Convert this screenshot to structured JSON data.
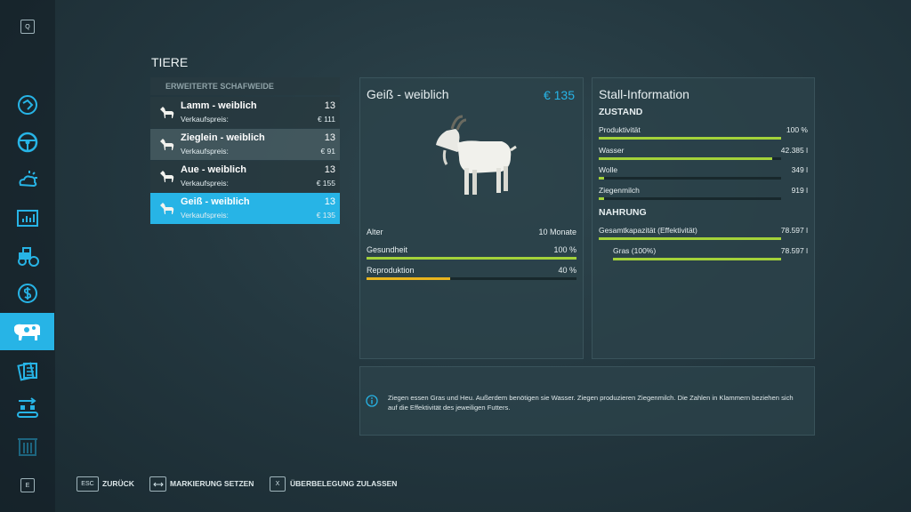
{
  "sidebar": {
    "top_key": "Q",
    "bottom_key": "E"
  },
  "page_title": "TIERE",
  "animal_list": {
    "header": "ERWEITERTE SCHAFWEIDE",
    "rows": [
      {
        "name": "Lamm - weiblich",
        "count": 13,
        "price_label": "Verkaufspreis:",
        "price": "€ 111",
        "selected": false
      },
      {
        "name": "Zieglein - weiblich",
        "count": 13,
        "price_label": "Verkaufspreis:",
        "price": "€ 91",
        "selected": false
      },
      {
        "name": "Aue - weiblich",
        "count": 13,
        "price_label": "Verkaufspreis:",
        "price": "€ 155",
        "selected": false
      },
      {
        "name": "Geiß - weiblich",
        "count": 13,
        "price_label": "Verkaufspreis:",
        "price": "€ 135",
        "selected": true
      }
    ]
  },
  "detail": {
    "name": "Geiß - weiblich",
    "price": "€ 135",
    "stats": [
      {
        "label": "Alter",
        "value": "10 Monate"
      },
      {
        "label": "Gesundheit",
        "value": "100 %",
        "level": 100,
        "bar_color": "#a3d23a"
      },
      {
        "label": "Reproduktion",
        "value": "40 %",
        "level": 40,
        "bar_color": "#e8b41e"
      }
    ]
  },
  "stall": {
    "title": "Stall-Information",
    "sections": [
      {
        "heading": "ZUSTAND",
        "rows": [
          {
            "label": "Produktivität",
            "value": "100 %",
            "level": 100,
            "bar_color": "#a3d23a"
          },
          {
            "label": "Wasser",
            "value": "42.385 l",
            "level": 95,
            "bar_color": "#a3d23a"
          },
          {
            "label": "Wolle",
            "value": "349 l",
            "level": 3,
            "bar_color": "#a3d23a"
          },
          {
            "label": "Ziegenmilch",
            "value": "919 l",
            "level": 3,
            "bar_color": "#a3d23a"
          }
        ]
      },
      {
        "heading": "NAHRUNG",
        "rows": [
          {
            "label": "Gesamtkapazität (Effektivität)",
            "value": "78.597 l",
            "level": 100,
            "bar_color": "#a3d23a",
            "indent": false
          },
          {
            "label": "Gras (100%)",
            "value": "78.597 l",
            "level": 100,
            "bar_color": "#a3d23a",
            "indent": true
          }
        ]
      }
    ]
  },
  "info": {
    "text": "Ziegen essen Gras und Heu. Außerdem benötigen sie Wasser. Ziegen produzieren Ziegenmilch. Die Zahlen in Klammern beziehen sich auf die Effektivität des jeweiligen Futters."
  },
  "footer": [
    {
      "key": "ESC",
      "label": "ZURÜCK"
    },
    {
      "label": "MARKIERUNG SETZEN"
    },
    {
      "key": "X",
      "label": "ÜBERBELEGUNG ZULASSEN"
    }
  ]
}
